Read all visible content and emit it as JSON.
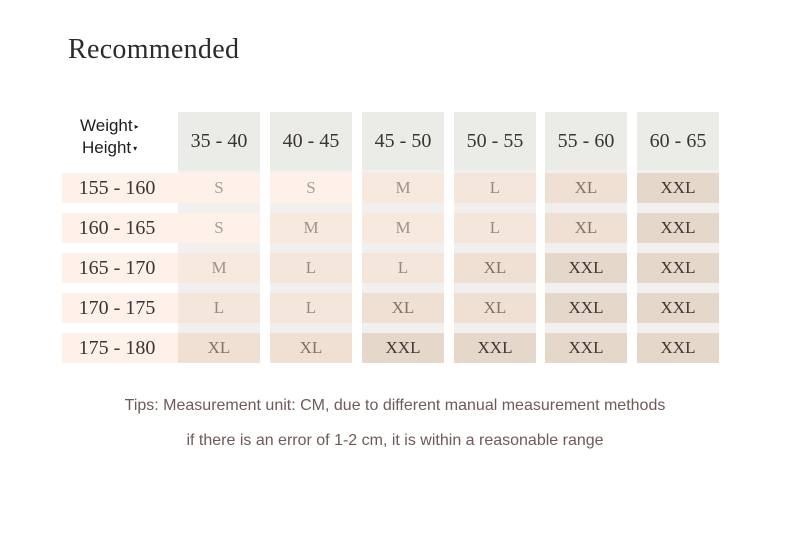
{
  "title": "Recommended",
  "corner": {
    "weight_label": "Weight",
    "weight_marker": "▸",
    "height_label": "Height",
    "height_marker": "▾"
  },
  "weight_ranges": [
    "35 - 40",
    "40 - 45",
    "45 - 50",
    "50 - 55",
    "55 - 60",
    "60 - 65"
  ],
  "rows": [
    {
      "height": "155 - 160",
      "sizes": [
        "S",
        "S",
        "M",
        "L",
        "XL",
        "XXL"
      ]
    },
    {
      "height": "160 - 165",
      "sizes": [
        "S",
        "M",
        "M",
        "L",
        "XL",
        "XXL"
      ]
    },
    {
      "height": "165 - 170",
      "sizes": [
        "M",
        "L",
        "L",
        "XL",
        "XXL",
        "XXL"
      ]
    },
    {
      "height": "170 - 175",
      "sizes": [
        "L",
        "L",
        "XL",
        "XL",
        "XXL",
        "XXL"
      ]
    },
    {
      "height": "175 - 180",
      "sizes": [
        "XL",
        "XL",
        "XXL",
        "XXL",
        "XXL",
        "XXL"
      ]
    }
  ],
  "tips": {
    "line1": "Tips: Measurement unit: CM, due to different manual measurement methods",
    "line2": "if there is an error of 1-2 cm, it is within a reasonable range"
  },
  "colors": {
    "header_bg": "#ebebe8",
    "S": "#fdf1ea",
    "M": "#f8e9df",
    "L": "#f5e6db",
    "XL": "#efe0d3",
    "XXL": "#e5d8cb",
    "tips_text": "#6e5a58"
  }
}
